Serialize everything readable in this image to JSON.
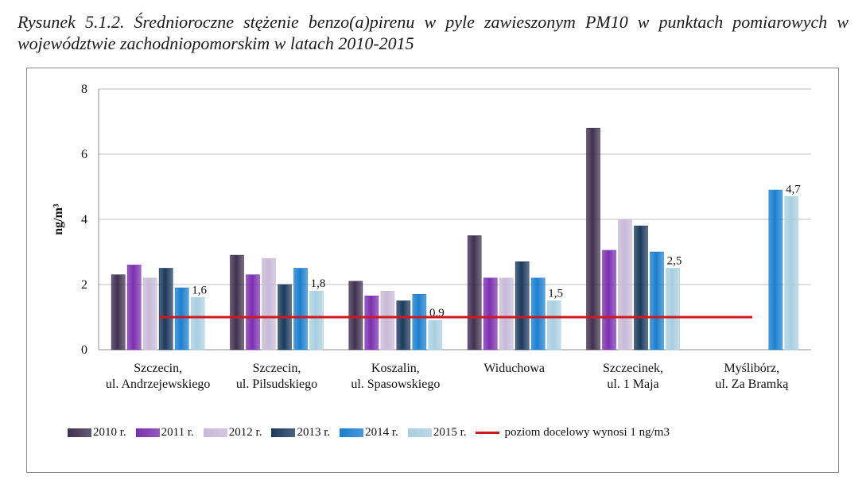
{
  "caption": "Rysunek 5.1.2. Średnioroczne stężenie benzo(a)pirenu w pyle zawieszonym PM10 w punktach pomiarowych w województwie zachodniopomorskim w latach 2010-2015",
  "colors": {
    "grid": "#bfbfbf",
    "axis": "#8c8c8c",
    "target_line": "#d0181f"
  },
  "chart_data": {
    "type": "bar",
    "ylabel": "ng/m³",
    "ylim": [
      0,
      8
    ],
    "yticks": [
      0,
      2,
      4,
      6,
      8
    ],
    "grid": true,
    "legend_position": "bottom",
    "categories": [
      [
        "Szczecin,",
        "ul. Andrzejewskiego"
      ],
      [
        "Szczecin,",
        "ul. Pilsudskiego"
      ],
      [
        "Koszalin,",
        "ul. Spasowskiego"
      ],
      [
        "Widuchowa"
      ],
      [
        "Szczecinek,",
        "ul. 1 Maja"
      ],
      [
        "Myślibórz,",
        "ul. Za Bramką"
      ]
    ],
    "series": [
      {
        "name": "2010 r.",
        "color": "#3f3150",
        "values": [
          2.3,
          2.9,
          2.1,
          3.5,
          6.8,
          null
        ]
      },
      {
        "name": "2011 r.",
        "color": "#7a2fb0",
        "values": [
          2.6,
          2.3,
          1.65,
          2.2,
          3.05,
          null
        ]
      },
      {
        "name": "2012 r.",
        "color": "#c8b9d8",
        "values": [
          2.2,
          2.8,
          1.8,
          2.2,
          4.0,
          null
        ]
      },
      {
        "name": "2013 r.",
        "color": "#1c3a5e",
        "values": [
          2.5,
          2.0,
          1.5,
          2.7,
          3.8,
          null
        ]
      },
      {
        "name": "2014 r.",
        "color": "#1b7fcf",
        "values": [
          1.9,
          2.5,
          1.7,
          2.2,
          3.0,
          4.9
        ]
      },
      {
        "name": "2015 r.",
        "color": "#a9cfe0",
        "values": [
          1.6,
          1.8,
          0.9,
          1.5,
          2.5,
          4.7
        ]
      }
    ],
    "data_labels": [
      "1,6",
      "1,8",
      "0,9",
      "1,5",
      "2,5",
      "4,7"
    ],
    "target_line": {
      "name": "poziom docelowy wynosi 1 ng/m3",
      "value": 1
    }
  }
}
